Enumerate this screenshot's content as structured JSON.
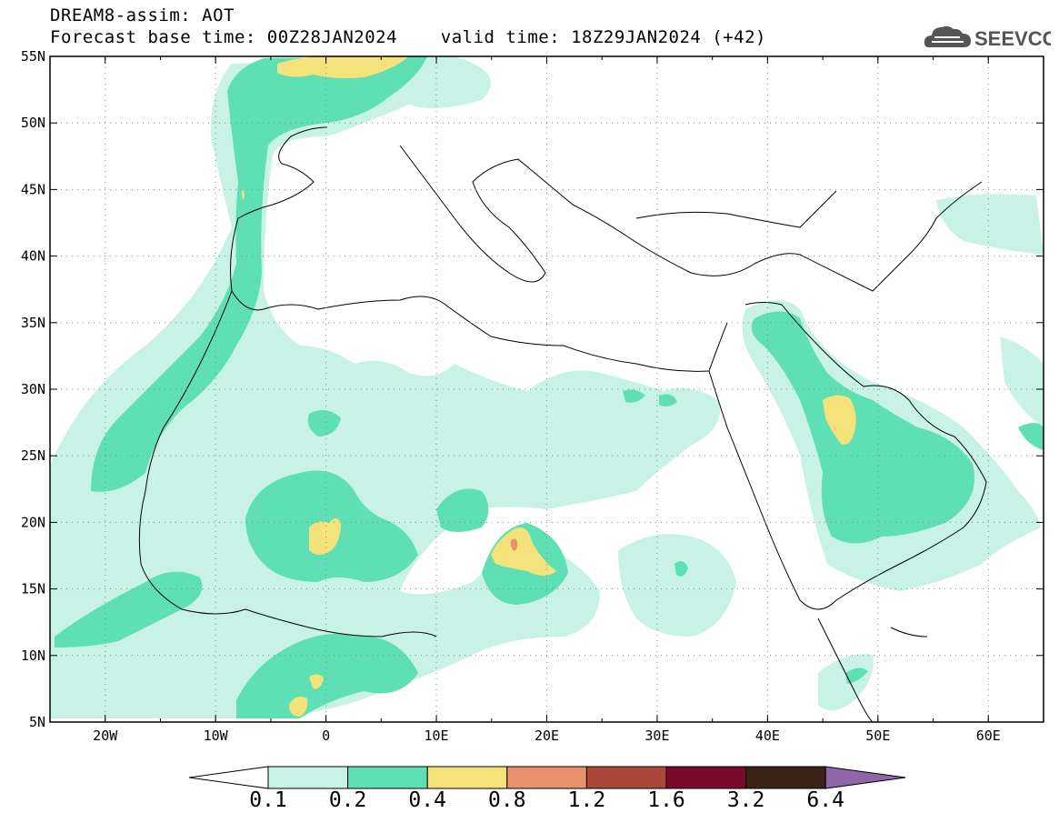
{
  "header": {
    "line1": "DREAM8-assim: AOT",
    "line2": "Forecast base time: 00Z28JAN2024    valid time: 18Z29JAN2024 (+42)"
  },
  "logo": {
    "text": "SEEVCCC",
    "icon": "cloud-icon"
  },
  "map": {
    "lat_labels": [
      "55N",
      "50N",
      "45N",
      "40N",
      "35N",
      "30N",
      "25N",
      "20N",
      "15N",
      "10N",
      "5N"
    ],
    "lon_labels": [
      "20W",
      "10W",
      "0",
      "10E",
      "20E",
      "30E",
      "40E",
      "50E",
      "60E"
    ],
    "lon_range": [
      -25,
      65
    ],
    "lat_range": [
      5,
      55
    ]
  },
  "colorbar": {
    "labels": [
      "0.1",
      "0.2",
      "0.4",
      "0.8",
      "1.2",
      "1.6",
      "3.2",
      "6.4"
    ],
    "colors": [
      "#ffffff",
      "#c8f2e6",
      "#5ee0b4",
      "#f5e27a",
      "#e8916a",
      "#a9473a",
      "#7a0a2a",
      "#3a2214",
      "#8f66a8"
    ]
  },
  "colors": {
    "c01": "#c8f2e6",
    "c02": "#5ee0b4",
    "c04": "#f5e27a",
    "c08": "#e8916a",
    "land_border": "#000000"
  }
}
